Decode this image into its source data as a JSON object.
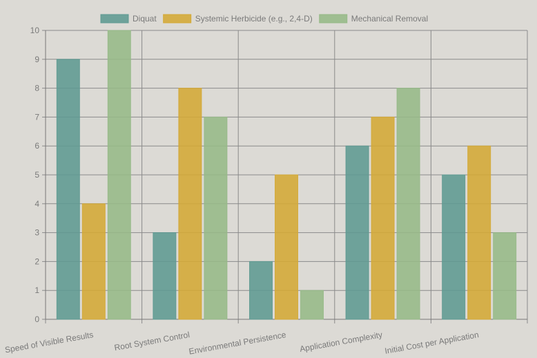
{
  "chart_data": {
    "type": "bar",
    "categories": [
      "Speed of Visible Results",
      "Root System Control",
      "Environmental Persistence",
      "Application Complexity",
      "Initial Cost per Application"
    ],
    "series": [
      {
        "name": "Diquat",
        "values": [
          9,
          3,
          2,
          6,
          5
        ],
        "color": "#5e9a92"
      },
      {
        "name": "Systemic Herbicide (e.g., 2,4-D)",
        "values": [
          4,
          8,
          5,
          7,
          6
        ],
        "color": "#d4a935"
      },
      {
        "name": "Mechanical Removal",
        "values": [
          10,
          7,
          1,
          8,
          3
        ],
        "color": "#96b988"
      }
    ],
    "ylim": [
      0,
      10
    ],
    "yticks": [
      0,
      1,
      2,
      3,
      4,
      5,
      6,
      7,
      8,
      9,
      10
    ],
    "grid": true,
    "legend": "top-center"
  }
}
